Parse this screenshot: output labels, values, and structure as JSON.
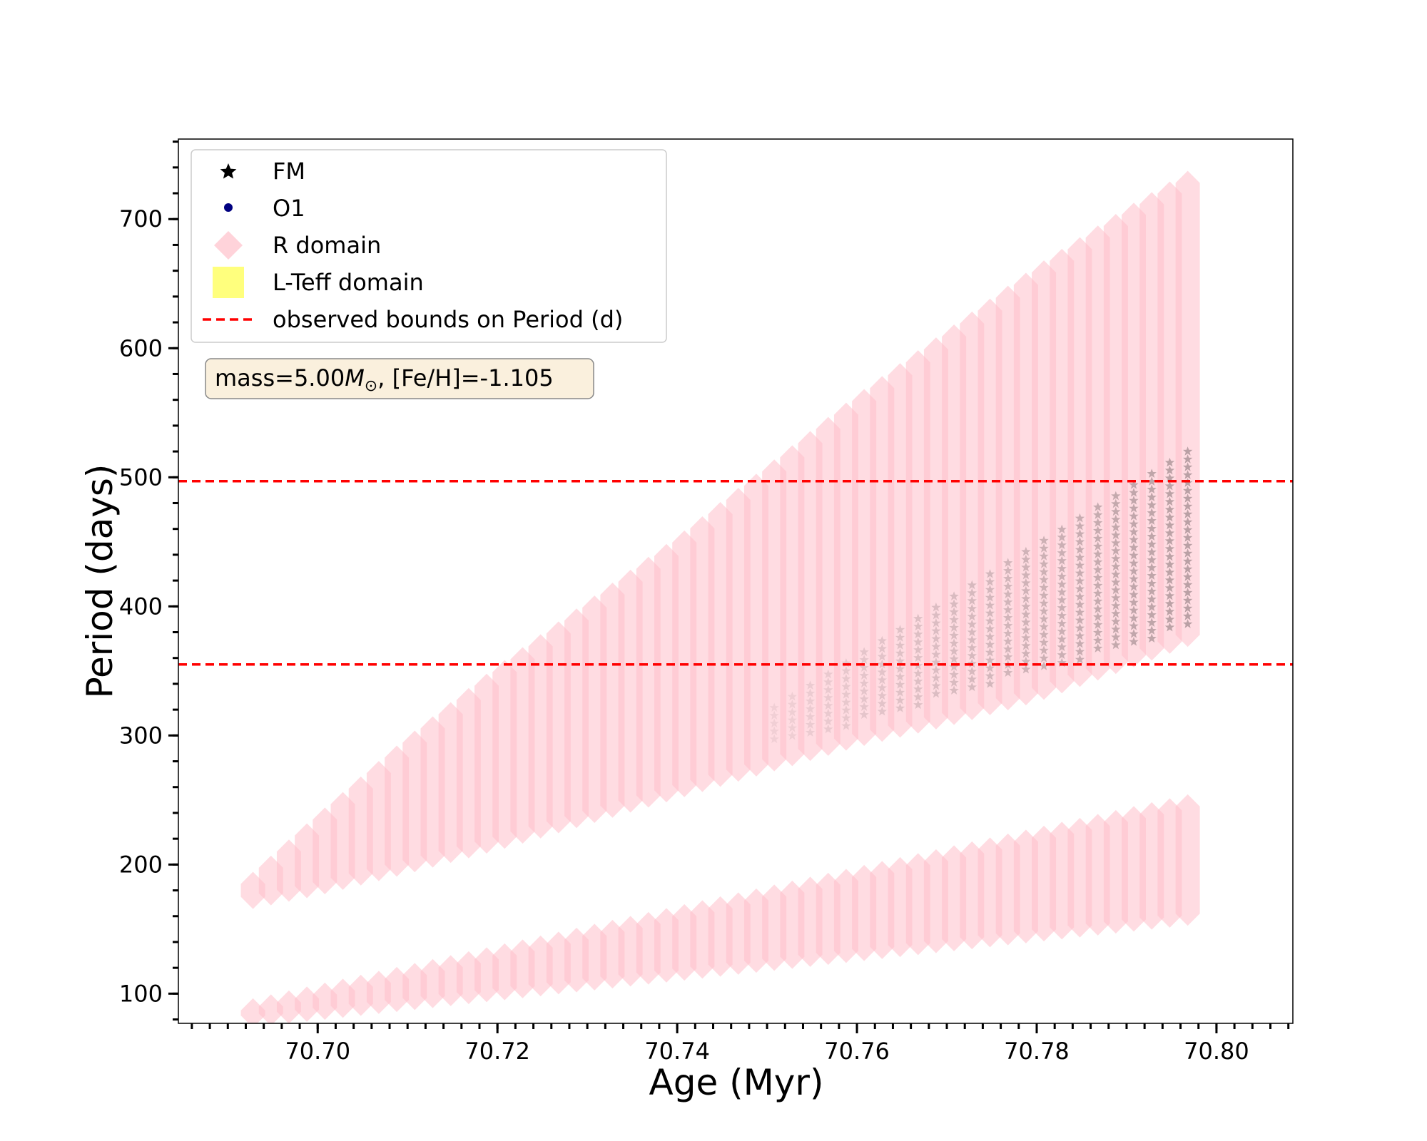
{
  "chart_data": {
    "type": "scatter",
    "xlabel": "Age (Myr)",
    "ylabel": "Period (days)",
    "xlim": [
      70.6845,
      70.8085
    ],
    "ylim": [
      77,
      762
    ],
    "xticks": [
      70.7,
      70.72,
      70.74,
      70.76,
      70.78,
      70.8
    ],
    "xtick_labels": [
      "70.70",
      "70.72",
      "70.74",
      "70.76",
      "70.78",
      "70.80"
    ],
    "yticks": [
      100,
      200,
      300,
      400,
      500,
      600,
      700
    ],
    "ytick_labels": [
      "100",
      "200",
      "300",
      "400",
      "500",
      "600",
      "700"
    ],
    "x_minor_step": 0.002,
    "y_minor_step": 20,
    "grid": false,
    "legend_position": "top-left",
    "legend": [
      {
        "label": "FM",
        "marker": "star",
        "color": "#000000"
      },
      {
        "label": "O1",
        "marker": "circle",
        "color": "#000080"
      },
      {
        "label": "R domain",
        "marker": "diamond",
        "color": "#ffc0cb"
      },
      {
        "label": "L-Teff domain",
        "marker": "square",
        "color": "#ffff66"
      },
      {
        "label": "observed bounds on Period (d)",
        "marker": "dashed-line",
        "color": "#ff0000"
      }
    ],
    "annotation": {
      "prefix": "mass=5.00",
      "symbol": "M",
      "subscript": "⊙",
      "suffix": ", [Fe/H]=-1.105"
    },
    "hlines": [
      {
        "y": 497,
        "label": "observed bounds on Period (d)",
        "color": "#ff0000",
        "style": "dashed"
      },
      {
        "y": 355,
        "label": "observed bounds on Period (d)",
        "color": "#ff0000",
        "style": "dashed"
      }
    ],
    "series": [
      {
        "name": "R domain",
        "color": "#ffc0cb",
        "marker": "diamond",
        "bands": [
          {
            "mode": "FM",
            "x_start": 70.6928,
            "x_end": 70.7968,
            "points": 53,
            "lower": {
              "x": [
                70.6928,
                70.7,
                70.71,
                70.72,
                70.73,
                70.74,
                70.75,
                70.76,
                70.77,
                70.78,
                70.79,
                70.7968
              ],
              "y": [
                175,
                185,
                202,
                220,
                240,
                260,
                280,
                300,
                316,
                335,
                360,
                378
              ]
            },
            "upper": {
              "x": [
                70.6928,
                70.7,
                70.71,
                70.72,
                70.73,
                70.74,
                70.75,
                70.76,
                70.77,
                70.78,
                70.79,
                70.7968
              ],
              "y": [
                185,
                230,
                290,
                345,
                395,
                445,
                500,
                555,
                605,
                655,
                700,
                728
              ]
            }
          },
          {
            "mode": "O1",
            "x_start": 70.6928,
            "x_end": 70.7968,
            "points": 53,
            "lower": {
              "x": [
                70.6928,
                70.7968
              ],
              "y": [
                83,
                162
              ]
            },
            "upper": {
              "x": [
                70.6928,
                70.7968
              ],
              "y": [
                87,
                245
              ]
            }
          }
        ]
      },
      {
        "name": "FM",
        "color": "#000000",
        "marker": "star",
        "note_cols": [
          70.75,
          70.7968
        ],
        "lower": {
          "x": [
            70.75,
            70.7968
          ],
          "y": [
            290,
            382
          ]
        },
        "upper": {
          "x": [
            70.75,
            70.7968
          ],
          "y": [
            318,
            520
          ]
        }
      }
    ]
  }
}
